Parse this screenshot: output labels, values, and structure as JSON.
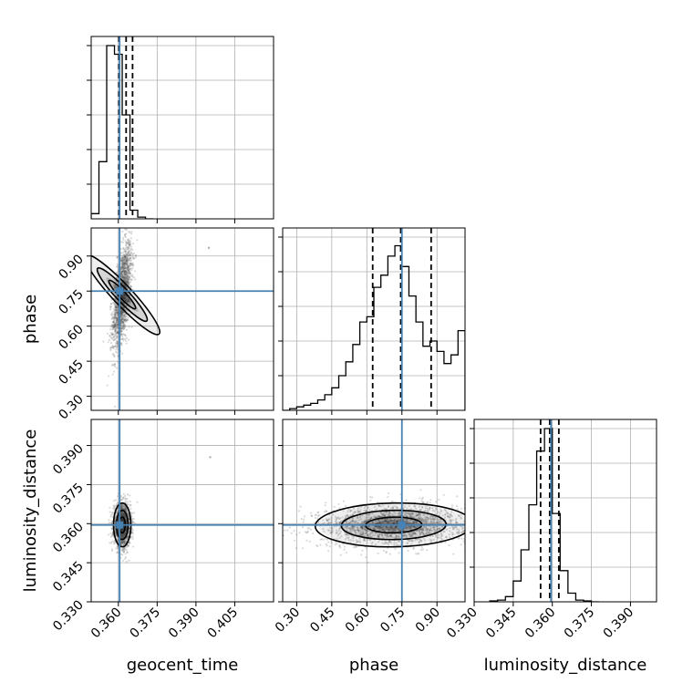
{
  "colors": {
    "truth": "#4682b4",
    "hist": "#000000",
    "grid": "#b0b0b0",
    "points": "#555555"
  },
  "chart_data": {
    "type": "corner",
    "parameters": [
      {
        "key": "geocent_time",
        "label": "geocent_time",
        "range": [
          0.3495,
          0.42
        ],
        "ticks": [
          0.36,
          0.375,
          0.39,
          0.405
        ],
        "tick_labels": [
          "0.360",
          "0.375",
          "0.390",
          "0.405"
        ],
        "truth": 0.3605,
        "quantile_lines": [
          0.3602,
          0.363,
          0.3655
        ]
      },
      {
        "key": "phase",
        "label": "phase",
        "range": [
          0.24,
          1.02
        ],
        "ticks": [
          0.3,
          0.45,
          0.6,
          0.75,
          0.9
        ],
        "tick_labels": [
          "0.30",
          "0.45",
          "0.60",
          "0.75",
          "0.90"
        ],
        "truth": 0.75,
        "quantile_lines": [
          0.625,
          0.745,
          0.875
        ]
      },
      {
        "key": "luminosity_distance",
        "label": "luminosity_distance",
        "range": [
          0.33,
          0.4
        ],
        "ticks": [
          0.33,
          0.345,
          0.36,
          0.375,
          0.39
        ],
        "tick_labels": [
          "0.330",
          "0.345",
          "0.360",
          "0.375",
          "0.390"
        ],
        "truth": 0.3595,
        "quantile_lines": [
          0.3555,
          0.359,
          0.3625
        ]
      }
    ],
    "histograms": [
      {
        "param": "geocent_time",
        "bin_edges": [
          0.3495,
          0.3525,
          0.3555,
          0.3585,
          0.3615,
          0.3645,
          0.3675,
          0.3705,
          0.3735
        ],
        "counts": [
          0.03,
          0.33,
          1.0,
          0.95,
          0.6,
          0.05,
          0.01,
          0.0
        ]
      },
      {
        "param": "phase",
        "bin_edges": [
          0.24,
          0.27,
          0.3,
          0.33,
          0.36,
          0.39,
          0.42,
          0.45,
          0.48,
          0.51,
          0.54,
          0.57,
          0.6,
          0.63,
          0.66,
          0.69,
          0.72,
          0.75,
          0.78,
          0.81,
          0.84,
          0.87,
          0.9,
          0.93,
          0.96,
          0.99,
          1.02
        ],
        "counts": [
          0.0,
          0.01,
          0.02,
          0.03,
          0.04,
          0.06,
          0.09,
          0.13,
          0.2,
          0.28,
          0.38,
          0.51,
          0.54,
          0.71,
          0.78,
          0.89,
          0.95,
          0.83,
          0.66,
          0.51,
          0.37,
          0.4,
          0.34,
          0.27,
          0.32,
          0.46
        ]
      },
      {
        "param": "luminosity_distance",
        "bin_edges": [
          0.336,
          0.339,
          0.342,
          0.345,
          0.348,
          0.351,
          0.354,
          0.357,
          0.36,
          0.363,
          0.366,
          0.369,
          0.372,
          0.375,
          0.378
        ],
        "counts": [
          0.005,
          0.01,
          0.03,
          0.12,
          0.3,
          0.56,
          0.87,
          1.0,
          0.51,
          0.18,
          0.05,
          0.01,
          0.005,
          0.0
        ]
      }
    ],
    "pairs": [
      {
        "x": "geocent_time",
        "y": "phase",
        "center": [
          0.3615,
          0.735
        ],
        "spread": [
          0.0018,
          0.11
        ],
        "rho": 0.55,
        "outlier": [
          0.395,
          0.935
        ]
      },
      {
        "x": "geocent_time",
        "y": "luminosity_distance",
        "center": [
          0.3615,
          0.3595
        ],
        "spread": [
          0.0016,
          0.004
        ],
        "rho": 0.0,
        "outlier": [
          0.3955,
          0.3855
        ]
      },
      {
        "x": "phase",
        "y": "luminosity_distance",
        "center": [
          0.715,
          0.3595
        ],
        "spread": [
          0.16,
          0.004
        ],
        "rho": 0.1
      }
    ],
    "xlabel_bottom": [
      "geocent_time",
      "phase",
      "luminosity_distance"
    ],
    "ylabel_left": [
      "phase",
      "luminosity_distance"
    ],
    "grid": true
  }
}
